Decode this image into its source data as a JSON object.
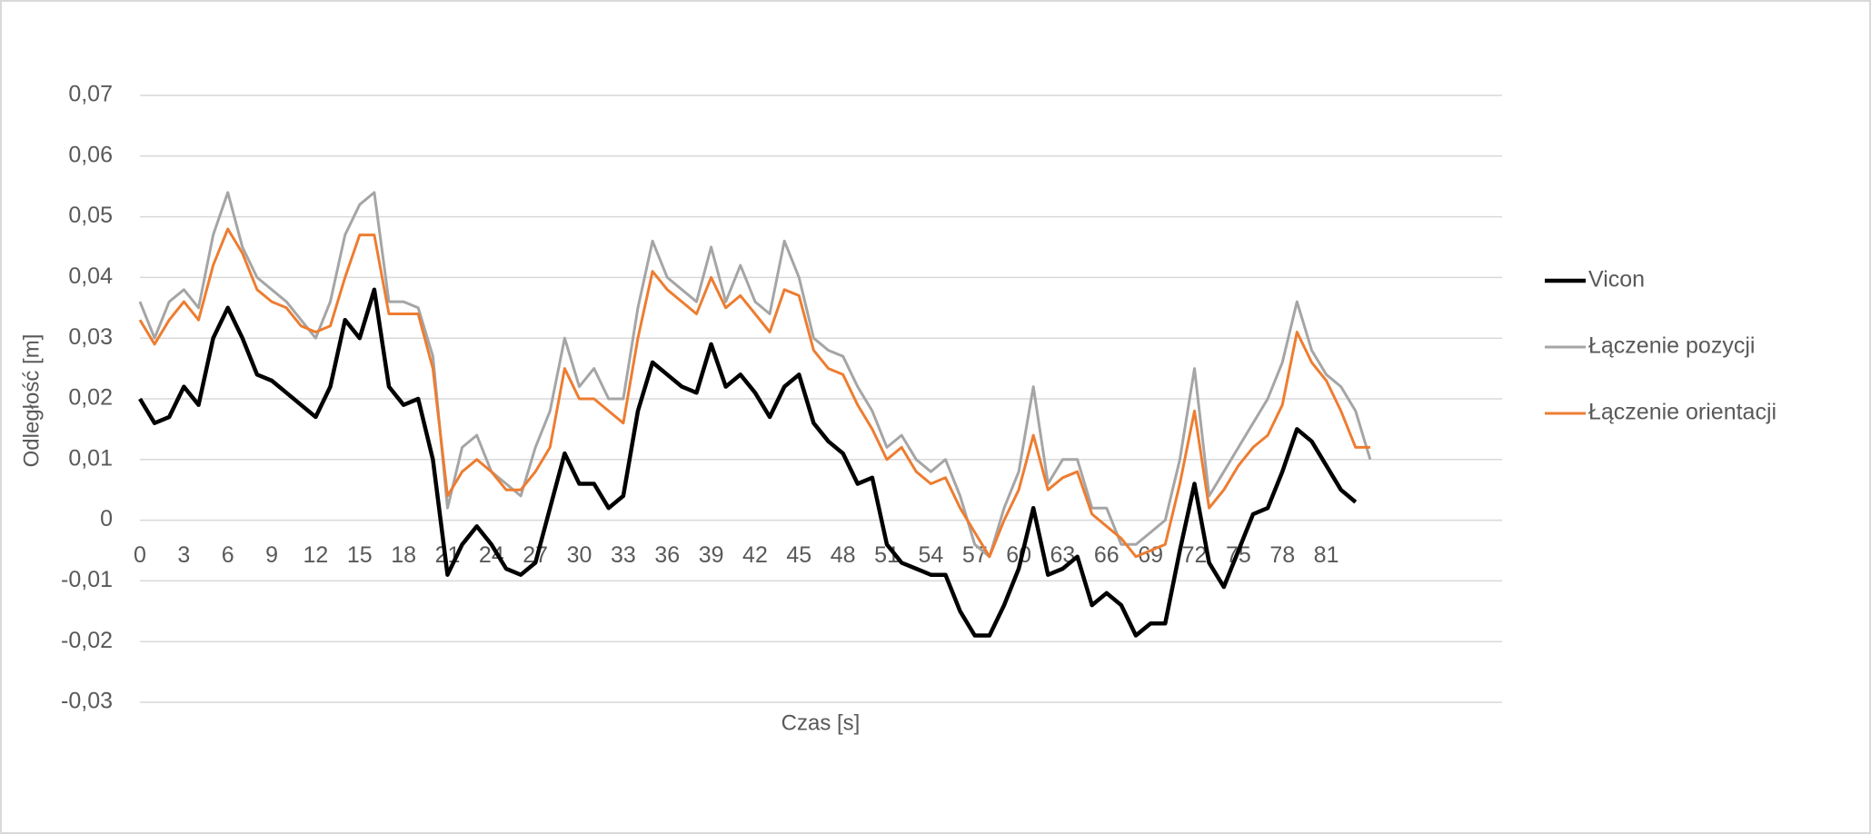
{
  "chart_data": {
    "type": "line",
    "x_label": "Czas [s]",
    "y_label": "Odległość [m]",
    "x": [
      0,
      1,
      2,
      3,
      4,
      5,
      6,
      7,
      8,
      9,
      10,
      11,
      12,
      13,
      14,
      15,
      16,
      17,
      18,
      19,
      20,
      21,
      22,
      23,
      24,
      25,
      26,
      27,
      28,
      29,
      30,
      31,
      32,
      33,
      34,
      35,
      36,
      37,
      38,
      39,
      40,
      41,
      42,
      43,
      44,
      45,
      46,
      47,
      48,
      49,
      50,
      51,
      52,
      53,
      54,
      55,
      56,
      57,
      58,
      59,
      60,
      61,
      62,
      63,
      64,
      65,
      66,
      67,
      68,
      69,
      70,
      71,
      72,
      73,
      74,
      75,
      76,
      77,
      78,
      79,
      80,
      81,
      82,
      83,
      84
    ],
    "xlim": [
      0,
      93
    ],
    "xticks": [
      0,
      3,
      6,
      9,
      12,
      15,
      18,
      21,
      24,
      27,
      30,
      33,
      36,
      39,
      42,
      45,
      48,
      51,
      54,
      57,
      60,
      63,
      66,
      69,
      72,
      75,
      78,
      81
    ],
    "ylim": [
      -0.03,
      0.07
    ],
    "yticks": [
      {
        "value": -0.03,
        "label": "-0,03"
      },
      {
        "value": -0.02,
        "label": "-0,02"
      },
      {
        "value": -0.01,
        "label": "-0,01"
      },
      0,
      {
        "value": 0.01,
        "label": "0,01"
      },
      {
        "value": 0.02,
        "label": "0,02"
      },
      {
        "value": 0.03,
        "label": "0,03"
      },
      {
        "value": 0.04,
        "label": "0,04"
      },
      {
        "value": 0.05,
        "label": "0,05"
      },
      {
        "value": 0.06,
        "label": "0,06"
      },
      {
        "value": 0.07,
        "label": "0,07"
      }
    ],
    "grid": true,
    "legend": "right",
    "series": [
      {
        "name": "Vicon",
        "color": "#000000",
        "values": [
          0.02,
          0.016,
          0.017,
          0.022,
          0.019,
          0.03,
          0.035,
          0.03,
          0.024,
          0.023,
          0.021,
          0.019,
          0.017,
          0.022,
          0.033,
          0.03,
          0.038,
          0.022,
          0.019,
          0.02,
          0.01,
          -0.009,
          -0.004,
          -0.001,
          -0.004,
          -0.008,
          -0.009,
          -0.007,
          0.002,
          0.011,
          0.006,
          0.006,
          0.002,
          0.004,
          0.018,
          0.026,
          0.024,
          0.022,
          0.021,
          0.029,
          0.022,
          0.024,
          0.021,
          0.017,
          0.022,
          0.024,
          0.016,
          0.013,
          0.011,
          0.006,
          0.007,
          -0.004,
          -0.007,
          -0.008,
          -0.009,
          -0.009,
          -0.015,
          -0.019,
          -0.019,
          -0.014,
          -0.008,
          0.002,
          -0.009,
          -0.008,
          -0.006,
          -0.014,
          -0.012,
          -0.014,
          -0.019,
          -0.017,
          -0.017,
          -0.005,
          0.006,
          -0.007,
          -0.011,
          -0.005,
          0.001,
          0.002,
          0.008,
          0.015,
          0.013,
          0.009,
          0.005,
          0.003,
          null
        ]
      },
      {
        "name": "Łączenie pozycji",
        "color": "#a5a5a5",
        "values": [
          0.036,
          0.03,
          0.036,
          0.038,
          0.035,
          0.047,
          0.054,
          0.045,
          0.04,
          0.038,
          0.036,
          0.033,
          0.03,
          0.036,
          0.047,
          0.052,
          0.054,
          0.036,
          0.036,
          0.035,
          0.027,
          0.002,
          0.012,
          0.014,
          0.008,
          0.006,
          0.004,
          0.012,
          0.018,
          0.03,
          0.022,
          0.025,
          0.02,
          0.02,
          0.035,
          0.046,
          0.04,
          0.038,
          0.036,
          0.045,
          0.036,
          0.042,
          0.036,
          0.034,
          0.046,
          0.04,
          0.03,
          0.028,
          0.027,
          0.022,
          0.018,
          0.012,
          0.014,
          0.01,
          0.008,
          0.01,
          0.004,
          -0.004,
          -0.006,
          0.002,
          0.008,
          0.022,
          0.006,
          0.01,
          0.01,
          0.002,
          0.002,
          -0.004,
          -0.004,
          -0.002,
          0.0,
          0.01,
          0.025,
          0.004,
          0.008,
          0.012,
          0.016,
          0.02,
          0.026,
          0.036,
          0.028,
          0.024,
          0.022,
          0.018,
          0.01
        ]
      },
      {
        "name": "Łączenie orientacji",
        "color": "#ed7d31",
        "values": [
          0.033,
          0.029,
          0.033,
          0.036,
          0.033,
          0.042,
          0.048,
          0.044,
          0.038,
          0.036,
          0.035,
          0.032,
          0.031,
          0.032,
          0.04,
          0.047,
          0.047,
          0.034,
          0.034,
          0.034,
          0.025,
          0.004,
          0.008,
          0.01,
          0.008,
          0.005,
          0.005,
          0.008,
          0.012,
          0.025,
          0.02,
          0.02,
          0.018,
          0.016,
          0.03,
          0.041,
          0.038,
          0.036,
          0.034,
          0.04,
          0.035,
          0.037,
          0.034,
          0.031,
          0.038,
          0.037,
          0.028,
          0.025,
          0.024,
          0.019,
          0.015,
          0.01,
          0.012,
          0.008,
          0.006,
          0.007,
          0.002,
          -0.002,
          -0.006,
          0.0,
          0.005,
          0.014,
          0.005,
          0.007,
          0.008,
          0.001,
          -0.001,
          -0.003,
          -0.006,
          -0.005,
          -0.004,
          0.006,
          0.018,
          0.002,
          0.005,
          0.009,
          0.012,
          0.014,
          0.019,
          0.031,
          0.026,
          0.023,
          0.018,
          0.012,
          0.012
        ]
      }
    ]
  }
}
